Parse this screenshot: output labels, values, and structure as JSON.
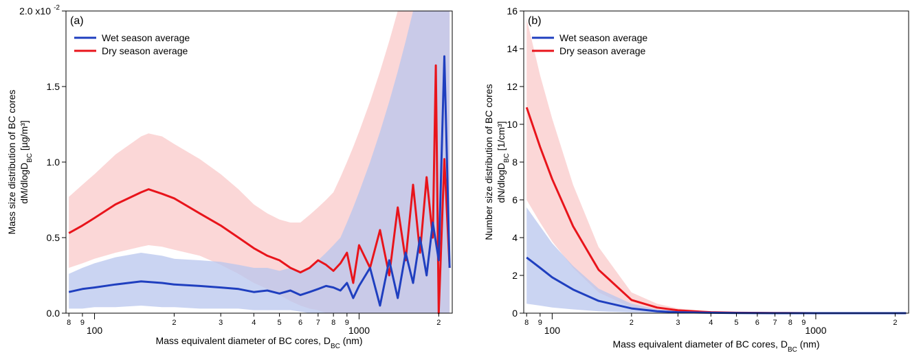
{
  "chart_data": [
    {
      "type": "line",
      "panel_label": "(a)",
      "xlabel_main": "Mass equivalent diameter of BC cores, D",
      "xlabel_sub": "BC",
      "xlabel_unit": " (nm)",
      "ylabel_line1": "Mass size distribution of BC cores",
      "ylabel_line2_main": "dM/dlogD",
      "ylabel_line2_sub": "BC",
      "ylabel_line2_unit": " [µg/m³]",
      "x_scale": "log",
      "xlim": [
        78,
        2250
      ],
      "ylim": [
        0,
        2.0
      ],
      "y_ticks": [
        0,
        0.5,
        1.0,
        1.5,
        2.0
      ],
      "y_tick_labels": [
        "0.0",
        "0.5",
        "1.0",
        "1.5",
        "2.0 x10"
      ],
      "y_top_exponent": "-2",
      "x_major_ticks": [
        100,
        1000
      ],
      "x_major_labels": [
        "100",
        "1000"
      ],
      "x_minor_ticks": [
        80,
        90,
        200,
        300,
        400,
        500,
        600,
        700,
        800,
        900,
        2000
      ],
      "x_minor_labels": [
        "8",
        "9",
        "2",
        "3",
        "4",
        "5",
        "6",
        "7",
        "8",
        "9",
        "2"
      ],
      "legend_position": "top-left",
      "series": [
        {
          "name": "Wet season average",
          "color": "#1f3fbf",
          "band_color": "#b8c6ee",
          "x": [
            80,
            90,
            100,
            120,
            150,
            180,
            200,
            250,
            300,
            350,
            400,
            450,
            500,
            550,
            600,
            650,
            700,
            750,
            800,
            850,
            900,
            950,
            1000,
            1100,
            1200,
            1300,
            1400,
            1500,
            1600,
            1700,
            1800,
            1900,
            2000,
            2100,
            2200
          ],
          "values": [
            0.14,
            0.16,
            0.17,
            0.19,
            0.21,
            0.2,
            0.19,
            0.18,
            0.17,
            0.16,
            0.14,
            0.15,
            0.13,
            0.15,
            0.12,
            0.14,
            0.16,
            0.18,
            0.17,
            0.15,
            0.2,
            0.1,
            0.18,
            0.3,
            0.05,
            0.35,
            0.1,
            0.4,
            0.2,
            0.5,
            0.25,
            0.6,
            0.35,
            1.7,
            0.3
          ],
          "band_lower": [
            0.03,
            0.03,
            0.04,
            0.04,
            0.05,
            0.04,
            0.04,
            0.03,
            0.03,
            0.03,
            0.02,
            0.02,
            0.02,
            0.02,
            0.01,
            0.0,
            0.0,
            0.0,
            0.0,
            0.0,
            0.0,
            0.0,
            0.0,
            0.0,
            0.0,
            0.0,
            0.0,
            0.0,
            0.0,
            0.0,
            0.0,
            0.0,
            0.0,
            0.0,
            0.0
          ],
          "band_upper": [
            0.26,
            0.3,
            0.33,
            0.37,
            0.4,
            0.38,
            0.36,
            0.35,
            0.34,
            0.32,
            0.3,
            0.3,
            0.28,
            0.3,
            0.28,
            0.3,
            0.35,
            0.4,
            0.45,
            0.5,
            0.6,
            0.7,
            0.8,
            1.0,
            1.2,
            1.4,
            1.6,
            1.8,
            2.0,
            2.0,
            2.0,
            2.0,
            2.0,
            2.0,
            2.0
          ]
        },
        {
          "name": "Dry season average",
          "color": "#e8141b",
          "band_color": "#fad0d0",
          "x": [
            80,
            90,
            100,
            120,
            150,
            160,
            180,
            200,
            250,
            300,
            350,
            400,
            450,
            500,
            550,
            600,
            650,
            700,
            750,
            800,
            850,
            900,
            950,
            1000,
            1100,
            1200,
            1300,
            1400,
            1500,
            1600,
            1700,
            1800,
            1900,
            1950,
            2000,
            2100,
            2200
          ],
          "values": [
            0.53,
            0.58,
            0.63,
            0.72,
            0.8,
            0.82,
            0.79,
            0.76,
            0.66,
            0.58,
            0.5,
            0.43,
            0.38,
            0.35,
            0.3,
            0.27,
            0.3,
            0.35,
            0.32,
            0.28,
            0.33,
            0.4,
            0.2,
            0.45,
            0.3,
            0.55,
            0.25,
            0.7,
            0.35,
            0.85,
            0.4,
            0.9,
            0.5,
            1.64,
            0.0,
            1.02,
            0.3
          ],
          "band_lower": [
            0.3,
            0.33,
            0.36,
            0.4,
            0.44,
            0.45,
            0.44,
            0.42,
            0.38,
            0.32,
            0.26,
            0.2,
            0.16,
            0.12,
            0.08,
            0.05,
            0.03,
            0.02,
            0.0,
            0.0,
            0.0,
            0.0,
            0.0,
            0.0,
            0.0,
            0.0,
            0.0,
            0.0,
            0.0,
            0.0,
            0.0,
            0.0,
            0.0,
            0.0,
            0.0,
            0.0,
            0.0
          ],
          "band_upper": [
            0.77,
            0.85,
            0.92,
            1.05,
            1.17,
            1.19,
            1.17,
            1.12,
            1.02,
            0.92,
            0.82,
            0.72,
            0.66,
            0.62,
            0.6,
            0.6,
            0.65,
            0.7,
            0.75,
            0.8,
            0.9,
            1.0,
            1.1,
            1.2,
            1.4,
            1.6,
            1.8,
            2.0,
            2.0,
            2.0,
            2.0,
            2.0,
            2.0,
            2.0,
            2.0,
            2.0,
            2.0
          ]
        }
      ]
    },
    {
      "type": "line",
      "panel_label": "(b)",
      "xlabel_main": "Mass equivalent diameter of BC cores, D",
      "xlabel_sub": "BC",
      "xlabel_unit": " (nm)",
      "ylabel_line1": "Number size distribution of BC cores",
      "ylabel_line2_main": "dN/dlogD",
      "ylabel_line2_sub": "BC",
      "ylabel_line2_unit": " [1/cm³]",
      "x_scale": "log",
      "xlim": [
        78,
        2250
      ],
      "ylim": [
        0,
        16
      ],
      "y_ticks": [
        0,
        2,
        4,
        6,
        8,
        10,
        12,
        14,
        16
      ],
      "y_tick_labels": [
        "0",
        "2",
        "4",
        "6",
        "8",
        "10",
        "12",
        "14",
        "16"
      ],
      "x_major_ticks": [
        100,
        1000
      ],
      "x_major_labels": [
        "100",
        "1000"
      ],
      "x_minor_ticks": [
        80,
        90,
        200,
        300,
        400,
        500,
        600,
        700,
        800,
        900,
        2000
      ],
      "x_minor_labels": [
        "8",
        "9",
        "2",
        "3",
        "4",
        "5",
        "6",
        "7",
        "8",
        "9",
        "2"
      ],
      "legend_position": "top-left",
      "series": [
        {
          "name": "Wet season average",
          "color": "#1f3fbf",
          "band_color": "#b8c6ee",
          "x": [
            80,
            90,
            100,
            120,
            150,
            200,
            250,
            300,
            400,
            500,
            700,
            1000,
            1500,
            2200
          ],
          "values": [
            2.95,
            2.4,
            1.9,
            1.25,
            0.65,
            0.25,
            0.1,
            0.05,
            0.02,
            0.01,
            0.0,
            0.0,
            0.0,
            0.0
          ],
          "band_lower": [
            0.5,
            0.4,
            0.3,
            0.2,
            0.1,
            0.04,
            0.02,
            0.01,
            0.0,
            0.0,
            0.0,
            0.0,
            0.0,
            0.0
          ],
          "band_upper": [
            5.6,
            4.6,
            3.7,
            2.5,
            1.3,
            0.5,
            0.2,
            0.1,
            0.04,
            0.02,
            0.01,
            0.0,
            0.0,
            0.0
          ]
        },
        {
          "name": "Dry season average",
          "color": "#e8141b",
          "band_color": "#fad0d0",
          "x": [
            80,
            90,
            100,
            120,
            150,
            200,
            250,
            300,
            400,
            500,
            700,
            1000,
            1500,
            2200
          ],
          "values": [
            10.9,
            8.8,
            7.1,
            4.6,
            2.3,
            0.7,
            0.3,
            0.15,
            0.05,
            0.02,
            0.01,
            0.0,
            0.0,
            0.0
          ],
          "band_lower": [
            6.0,
            4.8,
            3.8,
            2.4,
            1.1,
            0.3,
            0.1,
            0.05,
            0.02,
            0.01,
            0.0,
            0.0,
            0.0,
            0.0
          ],
          "band_upper": [
            15.6,
            12.6,
            10.3,
            6.8,
            3.5,
            1.1,
            0.5,
            0.25,
            0.08,
            0.03,
            0.01,
            0.0,
            0.0,
            0.0
          ]
        }
      ]
    }
  ]
}
